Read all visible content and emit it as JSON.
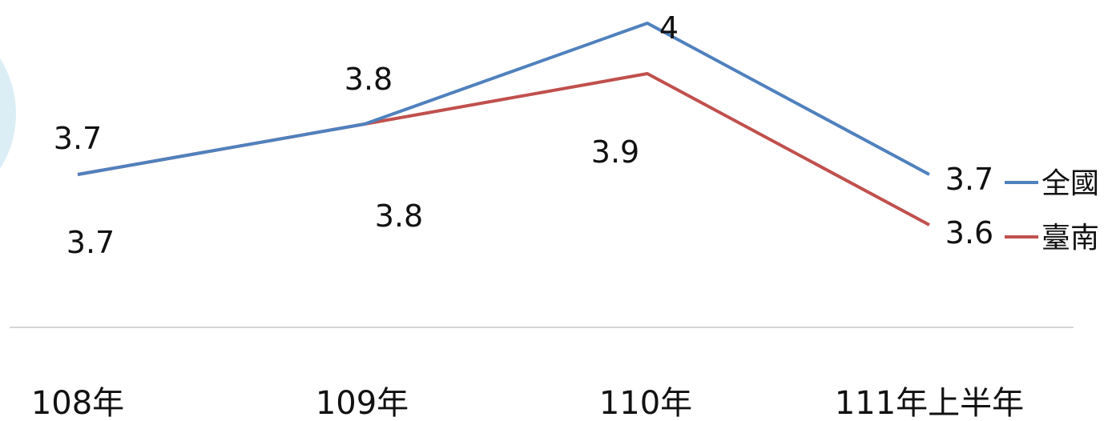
{
  "chart_data": {
    "type": "line",
    "categories": [
      "108年",
      "109年",
      "110年",
      "111年上半年"
    ],
    "series": [
      {
        "name": "全國",
        "values": [
          3.7,
          3.8,
          4,
          3.7
        ],
        "labels": [
          "3.7",
          "3.8",
          "4",
          "3.7"
        ],
        "color": "#4f81bd"
      },
      {
        "name": "臺南",
        "values": [
          3.7,
          3.8,
          3.9,
          3.6
        ],
        "labels": [
          "3.7",
          "3.8",
          "3.9",
          "3.6"
        ],
        "color": "#c0504d"
      }
    ],
    "grid": false,
    "legend": "right",
    "background_shape_color": "#dceef5"
  }
}
